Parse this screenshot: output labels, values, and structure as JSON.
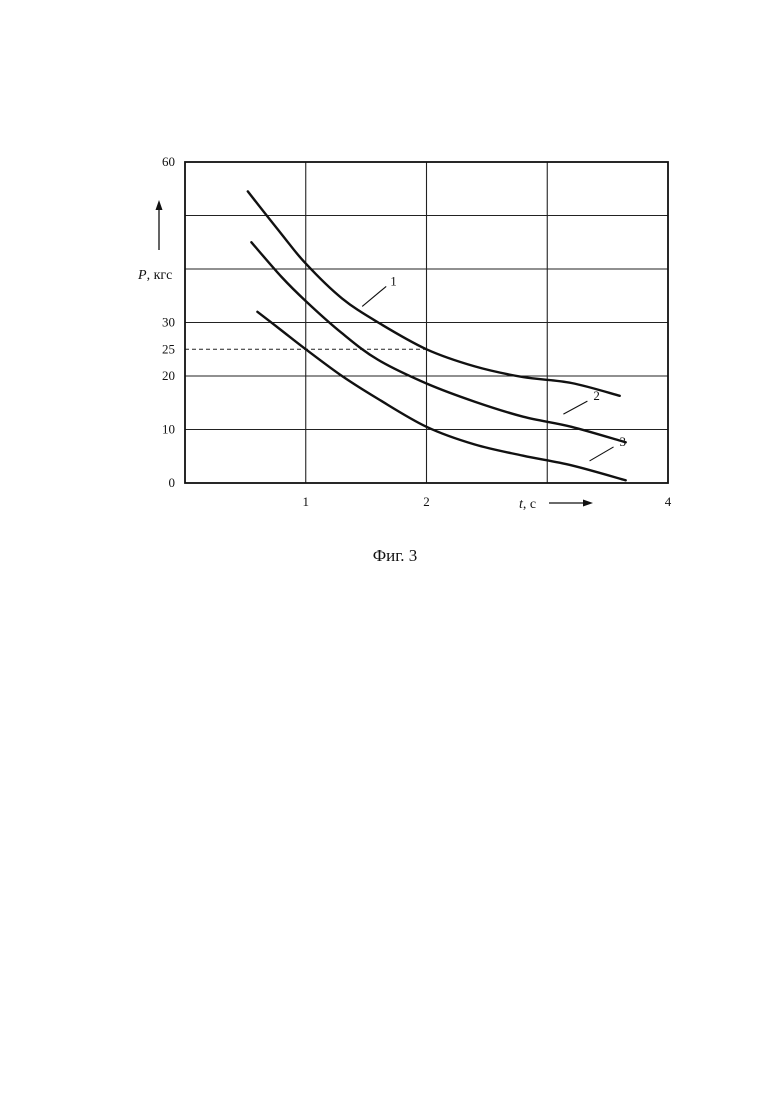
{
  "chart_data": {
    "type": "line",
    "ylabel_symbol": "P",
    "ylabel_unit": ", кгс",
    "xlabel_symbol": "t",
    "xlabel_unit": ", с",
    "xlim": [
      0,
      4
    ],
    "ylim": [
      0,
      60
    ],
    "grid": true,
    "x_ticks": [
      {
        "value": 1,
        "label": "1"
      },
      {
        "value": 2,
        "label": "2"
      },
      {
        "value": 4,
        "label": "4"
      }
    ],
    "y_ticks": [
      {
        "value": 0,
        "label": "0"
      },
      {
        "value": 10,
        "label": "10"
      },
      {
        "value": 20,
        "label": "20"
      },
      {
        "value": 25,
        "label": "25"
      },
      {
        "value": 30,
        "label": "30"
      },
      {
        "value": 60,
        "label": "60"
      }
    ],
    "gridlines_x": [
      1,
      2,
      3
    ],
    "gridlines_y": [
      10,
      20,
      30,
      40,
      50
    ],
    "reference_lines": {
      "x": 2,
      "y": 25
    },
    "series": [
      {
        "name": "1",
        "points": [
          [
            0.52,
            54.5
          ],
          [
            0.8,
            46.5
          ],
          [
            1.0,
            41
          ],
          [
            1.3,
            34.5
          ],
          [
            1.6,
            30
          ],
          [
            2.0,
            25
          ],
          [
            2.4,
            21.8
          ],
          [
            2.8,
            19.8
          ],
          [
            3.2,
            18.7
          ],
          [
            3.6,
            16.3
          ]
        ],
        "label_at": [
          1.6,
          36
        ]
      },
      {
        "name": "2",
        "points": [
          [
            0.55,
            45
          ],
          [
            0.8,
            38.5
          ],
          [
            1.0,
            34
          ],
          [
            1.3,
            28
          ],
          [
            1.6,
            23
          ],
          [
            2.0,
            18.6
          ],
          [
            2.4,
            15.2
          ],
          [
            2.8,
            12.4
          ],
          [
            3.2,
            10.5
          ],
          [
            3.65,
            7.6
          ]
        ],
        "label_at": [
          3.2,
          13.8
        ]
      },
      {
        "name": "3",
        "points": [
          [
            0.6,
            32
          ],
          [
            0.8,
            28.5
          ],
          [
            1.0,
            25
          ],
          [
            1.3,
            20
          ],
          [
            1.6,
            15.7
          ],
          [
            2.0,
            10.5
          ],
          [
            2.4,
            7.2
          ],
          [
            2.8,
            5.1
          ],
          [
            3.2,
            3.3
          ],
          [
            3.65,
            0.5
          ]
        ],
        "label_at": [
          3.4,
          4.5
        ]
      }
    ]
  },
  "caption": "Фиг. 3"
}
